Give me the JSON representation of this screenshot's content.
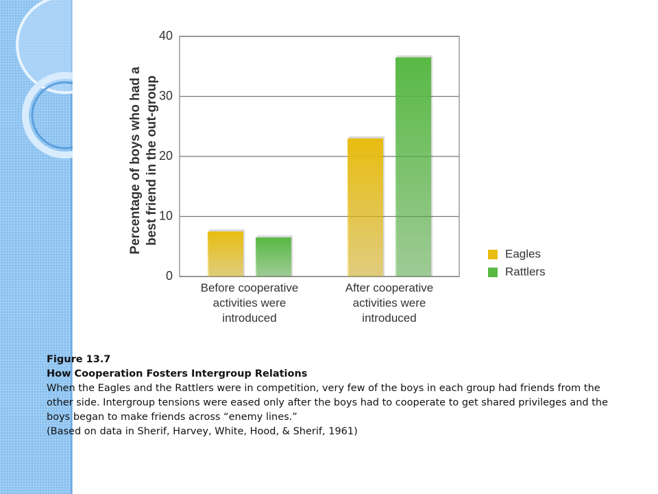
{
  "chart_data": {
    "type": "bar",
    "y_label": "Percentage of boys who had a best friend in the out-group",
    "categories": [
      "Before cooperative activities were introduced",
      "After cooperative activities were introduced"
    ],
    "series": [
      {
        "name": "Eagles",
        "color": "#e8bd10",
        "values": [
          7.5,
          23
        ]
      },
      {
        "name": "Rattlers",
        "color": "#58b944",
        "values": [
          6.5,
          36.5
        ]
      }
    ],
    "ylim": [
      0,
      40
    ],
    "yticks": [
      0,
      10,
      20,
      30,
      40
    ],
    "grid": true,
    "legend": "right"
  },
  "caption": {
    "figure": "Figure 13.7",
    "title": "How Cooperation Fosters Intergroup Relations",
    "text": "When the Eagles and the Rattlers were in competition, very few of the boys in each group had friends from the other side. Intergroup tensions were eased only after the boys had to cooperate to get shared privileges and the boys began to make friends across “enemy lines.”",
    "source": "(Based on data in Sherif, Harvey, White, Hood, & Sherif, 1961)"
  }
}
